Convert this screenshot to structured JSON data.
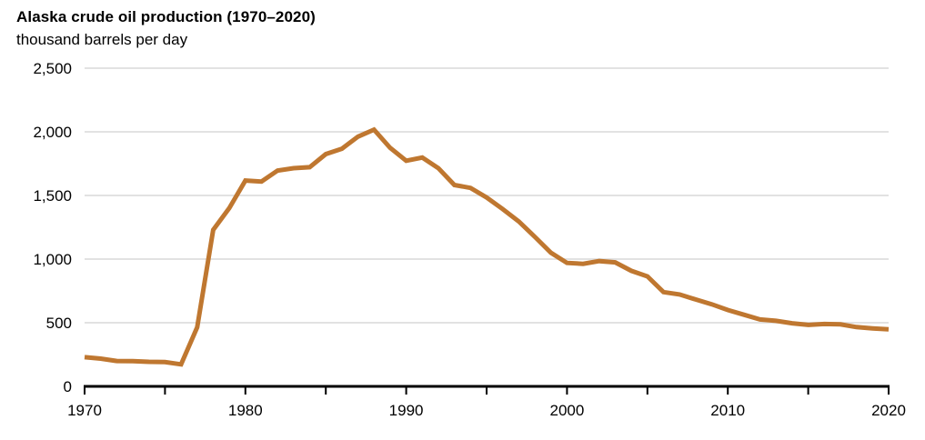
{
  "header": {
    "title": "Alaska crude oil production (1970–2020)",
    "subtitle": "thousand barrels per day"
  },
  "chart_data": {
    "type": "line",
    "title": "Alaska crude oil production (1970–2020)",
    "ylabel": "thousand barrels per day",
    "xlabel": "",
    "series_name": "Alaska crude oil production",
    "x": [
      1970,
      1971,
      1972,
      1973,
      1974,
      1975,
      1976,
      1977,
      1978,
      1979,
      1980,
      1981,
      1982,
      1983,
      1984,
      1985,
      1986,
      1987,
      1988,
      1989,
      1990,
      1991,
      1992,
      1993,
      1994,
      1995,
      1996,
      1997,
      1998,
      1999,
      2000,
      2001,
      2002,
      2003,
      2004,
      2005,
      2006,
      2007,
      2008,
      2009,
      2010,
      2011,
      2012,
      2013,
      2014,
      2015,
      2016,
      2017,
      2018,
      2019,
      2020
    ],
    "values": [
      229,
      218,
      199,
      198,
      193,
      191,
      173,
      464,
      1229,
      1401,
      1617,
      1609,
      1696,
      1714,
      1722,
      1825,
      1867,
      1962,
      2017,
      1874,
      1773,
      1798,
      1714,
      1582,
      1559,
      1484,
      1393,
      1296,
      1175,
      1050,
      970,
      963,
      984,
      974,
      908,
      864,
      741,
      722,
      683,
      645,
      600,
      563,
      526,
      515,
      496,
      483,
      490,
      487,
      466,
      456,
      448
    ],
    "xlim": [
      1970,
      2020
    ],
    "ylim": [
      0,
      2500
    ],
    "yticks": [
      0,
      500,
      1000,
      1500,
      2000,
      2500
    ],
    "ytick_labels": [
      "0",
      "500",
      "1,000",
      "1,500",
      "2,000",
      "2,500"
    ],
    "xticks_minor": [
      1970,
      1975,
      1980,
      1985,
      1990,
      1995,
      2000,
      2005,
      2010,
      2015,
      2020
    ],
    "xticks_labeled": [
      1970,
      1980,
      1990,
      2000,
      2010,
      2020
    ],
    "xtick_labels": [
      "1970",
      "1980",
      "1990",
      "2000",
      "2010",
      "2020"
    ],
    "grid": "horizontal",
    "legend": "none",
    "line_color": "#bf7730",
    "gridline_color": "#e2e2e2",
    "axis_color": "#000000",
    "text_color": "#000000"
  }
}
